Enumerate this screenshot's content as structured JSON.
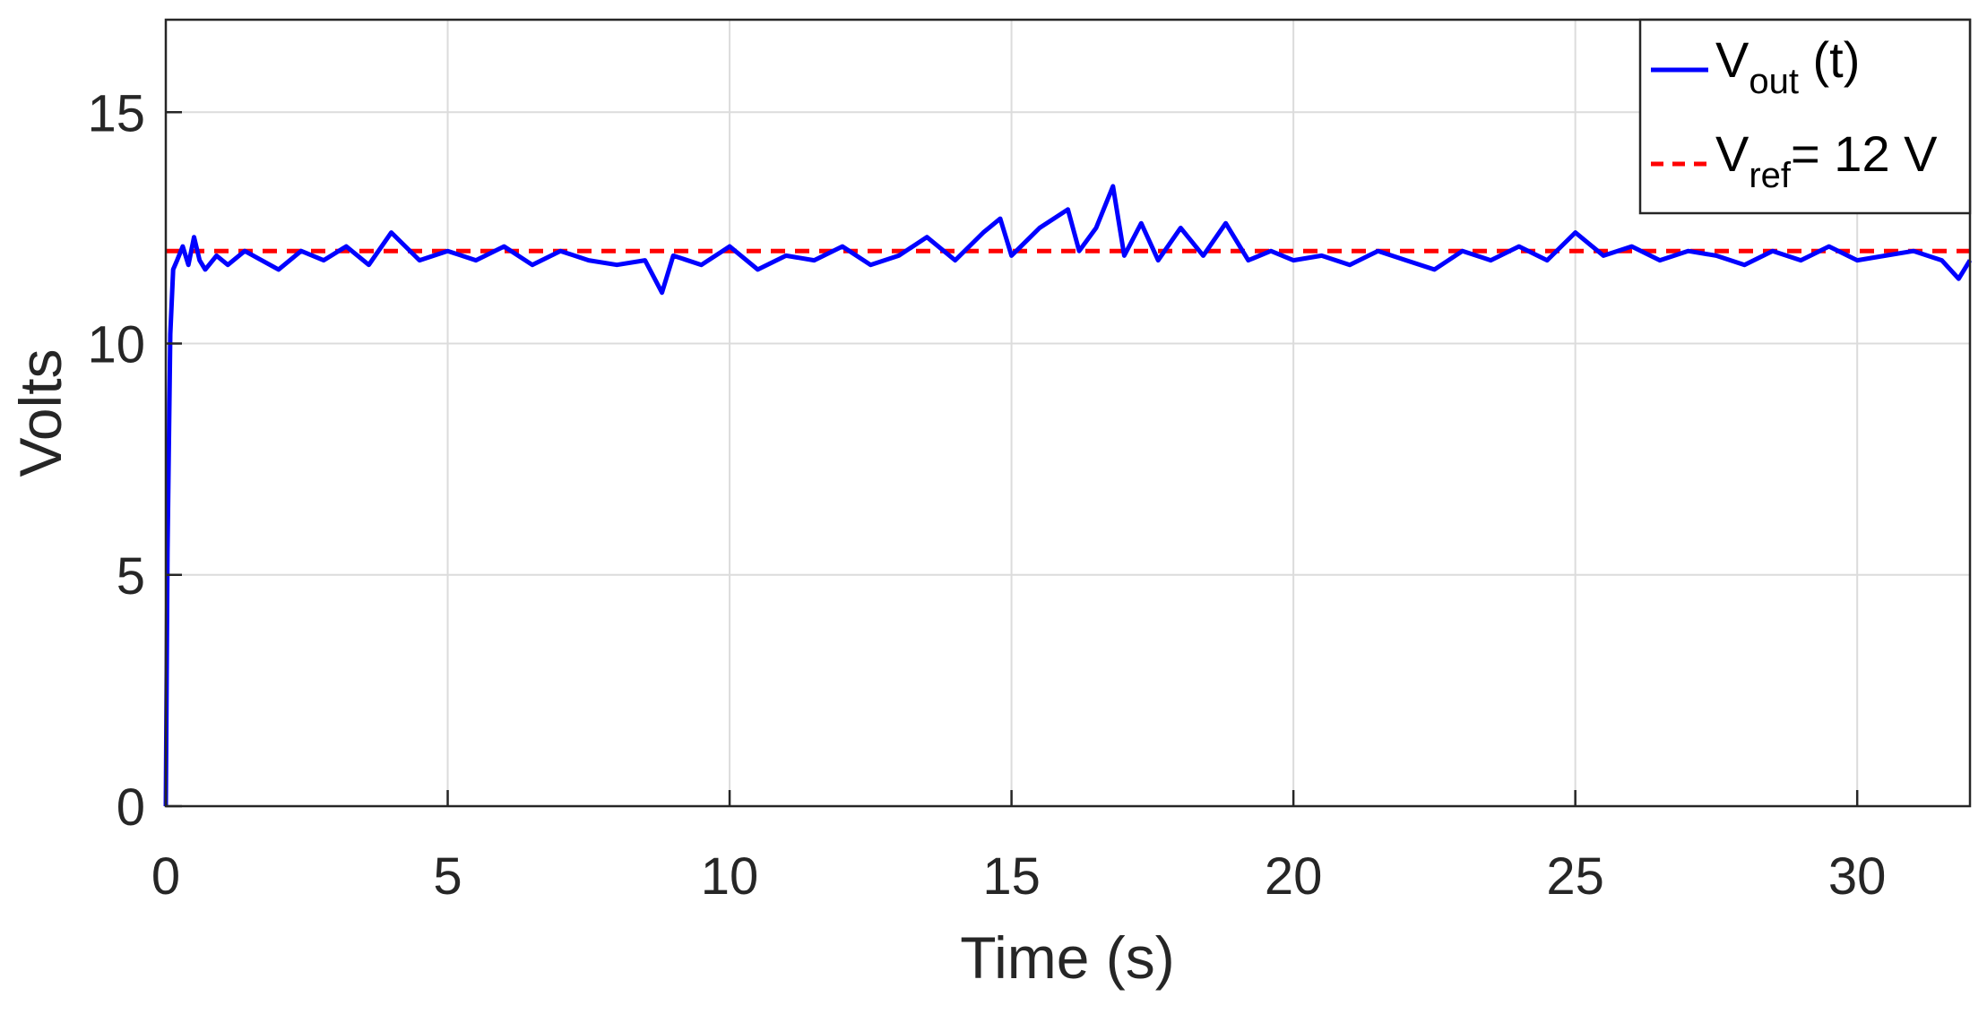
{
  "chart_data": {
    "type": "line",
    "xlabel": "Time (s)",
    "ylabel": "Volts",
    "xlim": [
      0,
      32
    ],
    "ylim": [
      0,
      17
    ],
    "xticks": [
      0,
      5,
      10,
      15,
      20,
      25,
      30
    ],
    "yticks": [
      0,
      5,
      10,
      15
    ],
    "grid": true,
    "legend_position": "top-right",
    "series": [
      {
        "name_main": "V",
        "name_sub": "out",
        "name_rest": " (t)",
        "color": "#0000ff",
        "style": "solid",
        "x": [
          0,
          0.03,
          0.08,
          0.13,
          0.2,
          0.3,
          0.4,
          0.5,
          0.6,
          0.7,
          0.9,
          1.1,
          1.4,
          1.7,
          2.0,
          2.4,
          2.8,
          3.2,
          3.6,
          4.0,
          4.5,
          5.0,
          5.5,
          6.0,
          6.5,
          7.0,
          7.5,
          8.0,
          8.5,
          8.8,
          9.0,
          9.5,
          10.0,
          10.5,
          11.0,
          11.5,
          12.0,
          12.5,
          13.0,
          13.5,
          14.0,
          14.5,
          14.8,
          15.0,
          15.5,
          16.0,
          16.2,
          16.5,
          16.8,
          17.0,
          17.3,
          17.6,
          18.0,
          18.4,
          18.8,
          19.2,
          19.6,
          20.0,
          20.5,
          21.0,
          21.5,
          22.0,
          22.5,
          23.0,
          23.5,
          24.0,
          24.5,
          25.0,
          25.5,
          26.0,
          26.5,
          27.0,
          27.5,
          28.0,
          28.5,
          29.0,
          29.5,
          30.0,
          30.5,
          31.0,
          31.5,
          31.8,
          32.0
        ],
        "y": [
          0,
          5.5,
          10.2,
          11.6,
          11.8,
          12.1,
          11.7,
          12.3,
          11.8,
          11.6,
          11.9,
          11.7,
          12.0,
          11.8,
          11.6,
          12.0,
          11.8,
          12.1,
          11.7,
          12.4,
          11.8,
          12.0,
          11.8,
          12.1,
          11.7,
          12.0,
          11.8,
          11.7,
          11.8,
          11.1,
          11.9,
          11.7,
          12.1,
          11.6,
          11.9,
          11.8,
          12.1,
          11.7,
          11.9,
          12.3,
          11.8,
          12.4,
          12.7,
          11.9,
          12.5,
          12.9,
          12.0,
          12.5,
          13.4,
          11.9,
          12.6,
          11.8,
          12.5,
          11.9,
          12.6,
          11.8,
          12.0,
          11.8,
          11.9,
          11.7,
          12.0,
          11.8,
          11.6,
          12.0,
          11.8,
          12.1,
          11.8,
          12.4,
          11.9,
          12.1,
          11.8,
          12.0,
          11.9,
          11.7,
          12.0,
          11.8,
          12.1,
          11.8,
          11.9,
          12.0,
          11.8,
          11.4,
          11.8
        ]
      },
      {
        "name_main": "V",
        "name_sub": "ref",
        "name_rest": "= 12 V",
        "color": "#ff0000",
        "style": "dashed",
        "x": [
          0,
          32
        ],
        "y": [
          12,
          12
        ]
      }
    ]
  }
}
